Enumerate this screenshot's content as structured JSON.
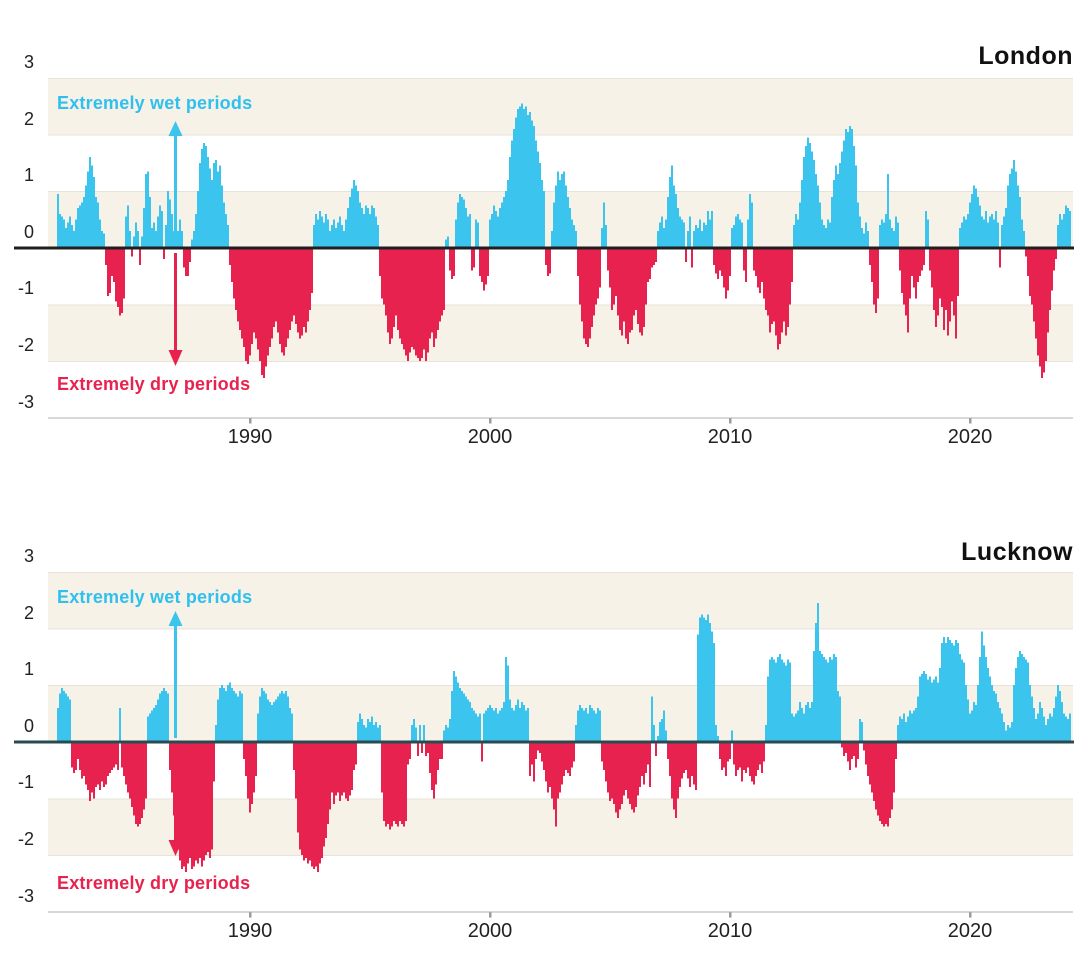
{
  "style": {
    "wet_color": "#3bc5ee",
    "dry_color": "#e8224e",
    "band_color": "#f7f2e8",
    "gridline_color": "#e7e3da",
    "axis_line_color": "#b5b2aa",
    "tick_color": "#9a9a9a",
    "label_color": "#222222",
    "zero_line_color_london": "#1f1f1f",
    "zero_line_color_lucknow": "#2a4a52"
  },
  "chart_data": [
    {
      "type": "bar",
      "title": "London",
      "frequency": "monthly",
      "x_start": "1982-01",
      "x_end": "2024-03",
      "ylim": [
        -3,
        3
      ],
      "grid": "horizontal-bands",
      "y_ticks": [
        3,
        2,
        1,
        0,
        -1,
        -2,
        -3
      ],
      "x_ticks": [
        1990,
        2000,
        2010,
        2020
      ],
      "annotations": {
        "wet": "Extremely wet periods",
        "dry": "Extremely dry periods"
      },
      "values": [
        0.95,
        0.6,
        0.55,
        0.5,
        0.35,
        0.45,
        0.55,
        0.4,
        0.3,
        0.5,
        0.7,
        0.75,
        0.8,
        0.9,
        1.1,
        1.35,
        1.6,
        1.45,
        1.25,
        0.9,
        0.8,
        0.5,
        0.3,
        0.25,
        -0.3,
        -0.85,
        -0.8,
        -0.5,
        -0.6,
        -0.95,
        -1.05,
        -1.2,
        -1.15,
        -0.9,
        0.55,
        0.75,
        0.3,
        -0.15,
        0.2,
        0.45,
        0.3,
        -0.3,
        0.2,
        0.7,
        1.3,
        1.35,
        0.9,
        0.35,
        0.45,
        0.3,
        0.55,
        0.75,
        0.65,
        -0.2,
        0.4,
        1.0,
        0.85,
        0.6,
        0.3,
        0.5,
        0.3,
        0.5,
        0.3,
        -0.35,
        -0.5,
        -0.5,
        -0.25,
        0.15,
        0.3,
        0.6,
        1.0,
        1.5,
        1.75,
        1.85,
        1.8,
        1.6,
        1.4,
        1.2,
        1.5,
        1.55,
        1.35,
        1.45,
        1.1,
        0.8,
        0.6,
        0.4,
        -0.3,
        -0.6,
        -0.9,
        -1.1,
        -1.3,
        -1.45,
        -1.6,
        -1.75,
        -2.0,
        -2.05,
        -1.9,
        -1.7,
        -1.5,
        -1.6,
        -1.8,
        -2.0,
        -2.25,
        -2.3,
        -2.1,
        -1.9,
        -1.75,
        -1.6,
        -1.4,
        -1.3,
        -1.5,
        -1.7,
        -1.85,
        -1.9,
        -1.75,
        -1.6,
        -1.45,
        -1.3,
        -1.2,
        -1.35,
        -1.5,
        -1.6,
        -1.55,
        -1.4,
        -1.5,
        -1.3,
        -1.1,
        -0.8,
        0.4,
        0.6,
        0.5,
        0.65,
        0.55,
        0.45,
        0.6,
        0.5,
        0.3,
        0.4,
        0.5,
        0.35,
        0.45,
        0.55,
        0.4,
        0.3,
        0.5,
        0.7,
        0.9,
        1.05,
        1.2,
        1.1,
        1.0,
        0.8,
        0.7,
        0.6,
        0.75,
        0.7,
        0.6,
        0.75,
        0.7,
        0.55,
        0.4,
        -0.5,
        -0.9,
        -1.0,
        -1.2,
        -1.5,
        -1.7,
        -1.6,
        -1.4,
        -1.2,
        -1.45,
        -1.6,
        -1.7,
        -1.8,
        -1.9,
        -2.0,
        -1.85,
        -1.75,
        -1.8,
        -1.9,
        -1.95,
        -2.0,
        -1.95,
        -1.8,
        -2.0,
        -1.85,
        -1.6,
        -1.5,
        -1.75,
        -1.6,
        -1.45,
        -1.3,
        -1.2,
        -1.1,
        0.15,
        0.2,
        -0.4,
        -0.55,
        -0.5,
        0.5,
        0.8,
        0.95,
        0.9,
        0.85,
        0.7,
        0.55,
        0.6,
        -0.4,
        -0.35,
        0.5,
        0.45,
        -0.5,
        -0.6,
        -0.75,
        -0.65,
        -0.5,
        0.5,
        0.6,
        0.75,
        0.65,
        0.55,
        0.7,
        0.8,
        0.9,
        1.0,
        1.2,
        1.6,
        1.9,
        2.1,
        2.3,
        2.45,
        2.5,
        2.55,
        2.45,
        2.5,
        2.35,
        2.4,
        2.25,
        2.15,
        1.9,
        1.7,
        1.5,
        1.2,
        1.0,
        -0.3,
        -0.5,
        -0.45,
        0.3,
        0.8,
        1.1,
        1.35,
        1.2,
        1.3,
        1.35,
        1.1,
        0.9,
        0.7,
        0.5,
        0.4,
        0.3,
        -0.5,
        -1.0,
        -1.3,
        -1.6,
        -1.7,
        -1.75,
        -1.6,
        -1.4,
        -1.2,
        -1.0,
        -0.9,
        -0.7,
        0.35,
        0.8,
        0.4,
        -0.4,
        -0.7,
        -1.1,
        -1.0,
        -0.85,
        -1.2,
        -1.45,
        -1.55,
        -1.3,
        -1.6,
        -1.7,
        -1.5,
        -1.45,
        -1.2,
        -1.1,
        -1.35,
        -1.5,
        -1.55,
        -1.4,
        -1.0,
        -0.6,
        -0.55,
        -0.35,
        -0.3,
        -0.25,
        0.3,
        0.45,
        0.55,
        0.35,
        0.5,
        0.9,
        1.25,
        1.45,
        1.1,
        0.95,
        0.7,
        0.55,
        0.5,
        0.45,
        -0.25,
        0.3,
        0.55,
        -0.35,
        0.3,
        0.4,
        0.35,
        0.5,
        0.3,
        0.45,
        0.4,
        0.65,
        0.5,
        0.65,
        -0.3,
        -0.45,
        -0.55,
        -0.4,
        -0.5,
        -0.7,
        -0.9,
        -0.75,
        -0.5,
        0.35,
        0.4,
        0.55,
        0.6,
        0.5,
        0.45,
        -0.4,
        -0.6,
        0.5,
        0.95,
        0.8,
        -0.4,
        -0.5,
        -0.7,
        -0.8,
        -0.6,
        -0.9,
        -1.1,
        -1.2,
        -1.5,
        -1.35,
        -1.3,
        -1.55,
        -1.8,
        -1.7,
        -1.5,
        -1.3,
        -1.55,
        -1.4,
        -1.0,
        -0.6,
        0.4,
        0.6,
        0.5,
        0.8,
        1.2,
        1.6,
        1.8,
        1.95,
        1.85,
        1.7,
        1.55,
        1.3,
        1.1,
        0.8,
        0.5,
        0.4,
        0.35,
        0.5,
        0.45,
        0.9,
        1.2,
        1.45,
        1.3,
        1.5,
        1.7,
        1.9,
        2.1,
        2.05,
        2.15,
        2.1,
        1.8,
        1.45,
        0.8,
        0.55,
        0.35,
        0.25,
        0.45,
        0.3,
        -0.3,
        -0.6,
        -1.0,
        -1.15,
        -0.9,
        0.4,
        0.5,
        0.45,
        0.6,
        1.3,
        0.5,
        0.35,
        0.3,
        0.55,
        0.45,
        -0.4,
        -0.8,
        -1.0,
        -1.2,
        -1.5,
        -0.9,
        -0.5,
        -0.7,
        -0.9,
        -0.6,
        -0.5,
        -0.4,
        -0.3,
        0.65,
        0.5,
        -0.4,
        -0.7,
        -1.1,
        -1.4,
        -1.2,
        -0.9,
        -1.05,
        -1.45,
        -1.1,
        -1.55,
        -1.3,
        -0.95,
        -1.2,
        -1.6,
        -0.85,
        0.35,
        0.45,
        0.55,
        0.5,
        0.6,
        0.8,
        0.95,
        1.1,
        1.05,
        0.9,
        0.75,
        0.55,
        0.5,
        0.65,
        0.45,
        0.55,
        0.6,
        0.5,
        0.65,
        0.45,
        -0.35,
        0.4,
        0.55,
        0.7,
        1.1,
        1.3,
        1.4,
        1.55,
        1.35,
        1.1,
        0.9,
        0.5,
        0.3,
        -0.15,
        -0.5,
        -0.85,
        -1.0,
        -1.3,
        -1.6,
        -1.9,
        -2.1,
        -2.3,
        -2.2,
        -2.0,
        -1.5,
        -1.1,
        -0.75,
        -0.4,
        -0.2,
        0.4,
        0.6,
        0.5,
        0.6,
        0.75,
        0.7,
        0.65
      ]
    },
    {
      "type": "bar",
      "title": "Lucknow",
      "frequency": "monthly",
      "x_start": "1982-01",
      "x_end": "2024-03",
      "ylim": [
        -3,
        3
      ],
      "grid": "horizontal-bands",
      "y_ticks": [
        3,
        2,
        1,
        0,
        -1,
        -2,
        -3
      ],
      "x_ticks": [
        1990,
        2000,
        2010,
        2020
      ],
      "annotations": {
        "wet": "Extremely wet periods",
        "dry": "Extremely dry periods"
      },
      "values": [
        0.6,
        0.85,
        0.95,
        0.9,
        0.85,
        0.8,
        0.75,
        -0.45,
        -0.55,
        -0.5,
        -0.3,
        -0.5,
        -0.65,
        -0.6,
        -0.75,
        -0.85,
        -1.05,
        -0.9,
        -1.0,
        -0.8,
        -0.75,
        -0.85,
        -0.7,
        -0.8,
        -0.75,
        -0.6,
        -0.55,
        -0.5,
        -0.45,
        -0.4,
        -0.5,
        0.6,
        -0.45,
        -0.6,
        -0.75,
        -0.9,
        -1.0,
        -1.15,
        -1.3,
        -1.45,
        -1.5,
        -1.45,
        -1.35,
        -1.2,
        -1.0,
        0.45,
        0.5,
        0.55,
        0.6,
        0.65,
        0.75,
        0.85,
        0.9,
        0.95,
        0.9,
        0.85,
        -0.5,
        -0.9,
        -1.3,
        -1.6,
        -1.9,
        -2.1,
        -2.25,
        -2.2,
        -2.3,
        -2.15,
        -2.05,
        -2.25,
        -2.2,
        -2.1,
        -2.15,
        -2.05,
        -2.2,
        -2.1,
        -2.0,
        -1.95,
        -2.05,
        -1.9,
        -0.7,
        0.3,
        0.75,
        0.95,
        1.0,
        0.95,
        0.9,
        1.0,
        1.05,
        0.95,
        0.9,
        0.85,
        0.8,
        0.9,
        0.85,
        -0.3,
        -0.6,
        -1.0,
        -1.25,
        -1.1,
        -0.9,
        -0.6,
        0.5,
        0.8,
        0.95,
        0.9,
        0.85,
        0.75,
        0.7,
        0.65,
        0.7,
        0.75,
        0.8,
        0.85,
        0.9,
        0.85,
        0.9,
        0.8,
        0.6,
        0.5,
        -0.5,
        -1.0,
        -1.6,
        -1.9,
        -2.0,
        -2.1,
        -2.05,
        -2.15,
        -2.1,
        -2.2,
        -2.25,
        -2.2,
        -2.3,
        -2.15,
        -2.05,
        -1.85,
        -1.7,
        -1.45,
        -1.2,
        -0.9,
        -1.1,
        -0.95,
        -0.9,
        -1.05,
        -0.95,
        -0.9,
        -1.0,
        -1.05,
        -0.95,
        -0.85,
        -0.5,
        -0.4,
        0.35,
        0.5,
        0.4,
        0.3,
        0.25,
        0.4,
        0.35,
        0.45,
        0.3,
        0.35,
        0.25,
        0.3,
        -0.9,
        -1.4,
        -1.5,
        -1.45,
        -1.55,
        -1.5,
        -1.4,
        -1.45,
        -1.5,
        -1.4,
        -1.45,
        -1.5,
        -1.4,
        -0.4,
        -0.3,
        0.3,
        0.4,
        0.25,
        -0.25,
        0.3,
        -0.2,
        0.3,
        -0.25,
        -0.2,
        -0.55,
        -0.85,
        -1.0,
        -0.75,
        -0.5,
        -0.3,
        -0.3,
        0.2,
        0.3,
        0.25,
        0.4,
        0.9,
        1.25,
        1.15,
        1.05,
        0.95,
        0.9,
        0.85,
        0.8,
        0.75,
        0.7,
        0.6,
        0.55,
        0.5,
        0.45,
        0.5,
        -0.35,
        0.5,
        0.55,
        0.6,
        0.65,
        0.6,
        0.55,
        0.6,
        0.5,
        0.55,
        0.6,
        0.7,
        1.5,
        1.35,
        0.75,
        0.6,
        0.55,
        0.65,
        0.75,
        0.6,
        0.7,
        0.65,
        0.55,
        0.6,
        -0.6,
        -0.4,
        -0.7,
        -0.3,
        -0.15,
        -0.2,
        -0.35,
        -0.5,
        -0.7,
        -0.9,
        -0.8,
        -1.0,
        -1.2,
        -1.5,
        -1.0,
        -0.9,
        -0.75,
        -0.6,
        -0.5,
        -0.55,
        -0.6,
        -0.45,
        -0.35,
        0.3,
        0.55,
        0.65,
        0.6,
        0.55,
        0.6,
        0.5,
        0.65,
        0.6,
        0.55,
        0.5,
        0.6,
        0.55,
        -0.35,
        -0.5,
        -0.7,
        -0.9,
        -1.05,
        -1.0,
        -1.1,
        -1.25,
        -1.35,
        -1.2,
        -1.1,
        -0.95,
        -0.85,
        -1.0,
        -1.1,
        -1.2,
        -1.25,
        -1.15,
        -0.95,
        -0.8,
        -0.6,
        -0.75,
        -0.55,
        -0.4,
        -0.8,
        0.8,
        0.3,
        -0.25,
        0.1,
        0.35,
        0.4,
        0.55,
        0.2,
        -0.3,
        -0.6,
        -1.0,
        -1.2,
        -1.35,
        -1.0,
        -0.8,
        -0.65,
        -0.55,
        -0.5,
        -0.65,
        -0.8,
        -0.6,
        -0.75,
        -0.85,
        1.9,
        2.2,
        2.25,
        2.2,
        2.15,
        2.25,
        2.1,
        1.95,
        1.75,
        0.3,
        0.1,
        -0.3,
        -0.5,
        -0.45,
        -0.6,
        -0.35,
        -0.3,
        0.2,
        -0.4,
        -0.6,
        -0.5,
        -0.45,
        -0.7,
        -0.5,
        -0.55,
        -0.45,
        -0.6,
        -0.7,
        -0.75,
        -0.6,
        -0.5,
        -0.4,
        -0.55,
        -0.35,
        0.3,
        1.15,
        1.45,
        1.5,
        1.45,
        1.4,
        1.5,
        1.55,
        1.45,
        1.4,
        1.35,
        1.45,
        1.4,
        0.5,
        0.45,
        0.5,
        0.55,
        0.7,
        0.6,
        0.5,
        0.65,
        0.7,
        0.6,
        0.7,
        1.6,
        2.1,
        2.45,
        1.6,
        1.55,
        1.5,
        1.45,
        1.4,
        1.5,
        1.45,
        1.55,
        1.5,
        0.9,
        0.8,
        -0.1,
        -0.25,
        -0.2,
        -0.35,
        -0.5,
        -0.3,
        -0.25,
        -0.45,
        -0.3,
        0.4,
        0.35,
        -0.15,
        -0.4,
        -0.6,
        -0.75,
        -0.9,
        -1.05,
        -1.2,
        -1.3,
        -1.4,
        -1.45,
        -1.5,
        -1.45,
        -1.5,
        -1.35,
        -1.2,
        -0.9,
        -0.3,
        0.3,
        0.45,
        0.4,
        0.5,
        0.35,
        0.45,
        0.55,
        0.5,
        0.55,
        0.6,
        0.8,
        1.15,
        1.2,
        1.25,
        1.2,
        1.1,
        1.15,
        1.05,
        1.1,
        1.15,
        1.05,
        1.3,
        1.75,
        1.85,
        1.75,
        1.85,
        1.8,
        1.75,
        1.7,
        1.8,
        1.75,
        1.55,
        1.45,
        1.4,
        1.0,
        0.75,
        0.5,
        0.55,
        0.7,
        0.65,
        1.0,
        1.5,
        1.95,
        1.7,
        1.5,
        1.3,
        1.15,
        1.0,
        0.9,
        0.85,
        0.7,
        0.6,
        0.5,
        0.35,
        0.2,
        0.3,
        0.25,
        0.35,
        1.0,
        1.3,
        1.5,
        1.6,
        1.55,
        1.5,
        1.45,
        1.4,
        1.0,
        0.8,
        0.6,
        0.4,
        0.5,
        0.7,
        0.6,
        0.45,
        0.3,
        0.4,
        0.5,
        0.45,
        0.6,
        0.8,
        1.0,
        0.9,
        0.7,
        0.5,
        0.45,
        0.4,
        0.5
      ]
    }
  ]
}
